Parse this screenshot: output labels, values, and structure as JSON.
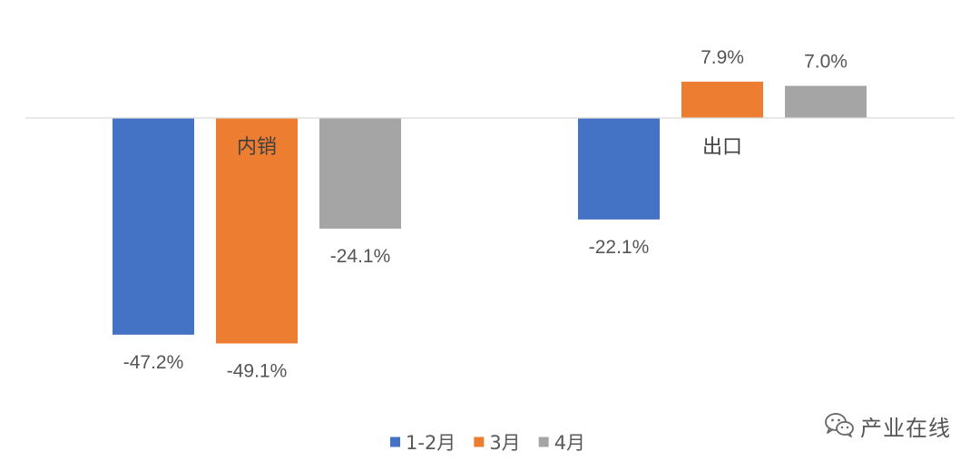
{
  "chart_data": {
    "type": "bar",
    "categories": [
      "内销",
      "出口"
    ],
    "series": [
      {
        "name": "1-2月",
        "color": "#4472C4",
        "values": [
          -47.2,
          -22.1
        ],
        "labels": [
          "-47.2%",
          "-22.1%"
        ]
      },
      {
        "name": "3月",
        "color": "#ED7D31",
        "values": [
          -49.1,
          7.9
        ],
        "labels": [
          "-49.1%",
          "7.9%"
        ]
      },
      {
        "name": "4月",
        "color": "#A5A5A5",
        "values": [
          -24.1,
          7.0
        ],
        "labels": [
          "-24.1%",
          "7.0%"
        ]
      }
    ],
    "title": "",
    "xlabel": "",
    "ylabel": "",
    "ylim": [
      -49.1,
      7.9
    ],
    "grid": false,
    "legend_position": "bottom"
  },
  "watermark": {
    "text": "产业在线",
    "icon": "wechat-icon"
  }
}
